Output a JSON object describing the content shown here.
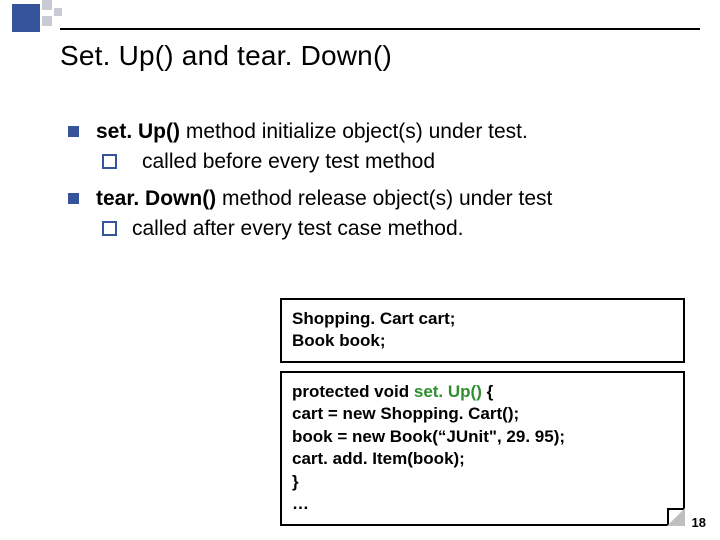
{
  "title": "Set. Up() and tear. Down()",
  "bullets": {
    "b1": {
      "pre": "set. Up()",
      "rest": " method initialize object(s) under test."
    },
    "b1a": "called before every test method",
    "b2": {
      "pre": "tear. Down()",
      "rest": " method release object(s) under test"
    },
    "b2a": "called after every test case method."
  },
  "code": {
    "decl_l1": "Shopping. Cart cart;",
    "decl_l2": "Book book;",
    "impl_l1_a": "protected void ",
    "impl_l1_b": "set. Up()",
    "impl_l1_c": " {",
    "impl_l2": " cart = new Shopping. Cart();",
    "impl_l3": " book = new Book(“JUnit\", 29. 95);",
    "impl_l4": " cart. add. Item(book);",
    "impl_l5": "}",
    "impl_l6": "…"
  },
  "page_number": "18",
  "colors": {
    "accent": "#35549b",
    "setup_green": "#2f8f2f"
  }
}
